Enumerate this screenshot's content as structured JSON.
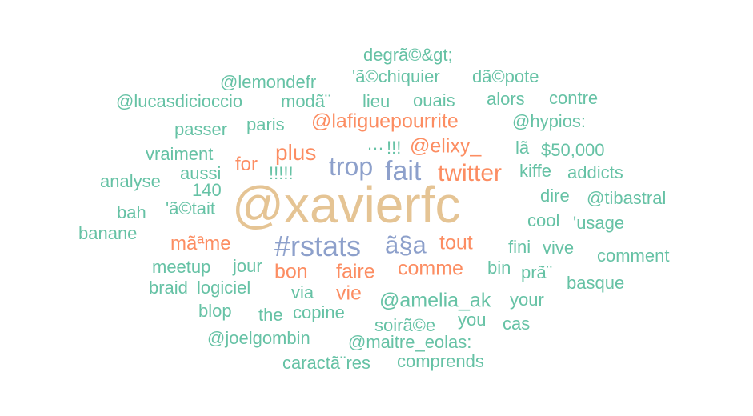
{
  "palette": {
    "green": "#66c2a5",
    "orange": "#fc8d62",
    "blue": "#8da0cb",
    "tan": "#e5c494"
  },
  "words": [
    {
      "text": "@xavierfc",
      "color": "tan"
    },
    {
      "text": "#rstats",
      "color": "blue"
    },
    {
      "text": "fait",
      "color": "blue"
    },
    {
      "text": "trop",
      "color": "blue"
    },
    {
      "text": "ã§a",
      "color": "blue"
    },
    {
      "text": "twitter",
      "color": "orange"
    },
    {
      "text": "plus",
      "color": "orange"
    },
    {
      "text": "@lafiguepourrite",
      "color": "orange"
    },
    {
      "text": "@elixy_",
      "color": "orange"
    },
    {
      "text": "tout",
      "color": "orange"
    },
    {
      "text": "comme",
      "color": "orange"
    },
    {
      "text": "faire",
      "color": "orange"
    },
    {
      "text": "bon",
      "color": "orange"
    },
    {
      "text": "vie",
      "color": "orange"
    },
    {
      "text": "mãªme",
      "color": "orange"
    },
    {
      "text": "for",
      "color": "orange"
    },
    {
      "text": "@amelia_ak",
      "color": "green"
    },
    {
      "text": "!!!",
      "color": "green"
    },
    {
      "text": "!!!!!",
      "color": "green"
    },
    {
      "text": "…",
      "color": "green"
    },
    {
      "text": "degrã©&gt;",
      "color": "green"
    },
    {
      "text": "'ã©chiquier",
      "color": "green"
    },
    {
      "text": "dã©pote",
      "color": "green"
    },
    {
      "text": "@lemondefr",
      "color": "green"
    },
    {
      "text": "@lucasdicioccio",
      "color": "green"
    },
    {
      "text": "modã¨",
      "color": "green"
    },
    {
      "text": "lieu",
      "color": "green"
    },
    {
      "text": "ouais",
      "color": "green"
    },
    {
      "text": "alors",
      "color": "green"
    },
    {
      "text": "contre",
      "color": "green"
    },
    {
      "text": "passer",
      "color": "green"
    },
    {
      "text": "paris",
      "color": "green"
    },
    {
      "text": "@hypios:",
      "color": "green"
    },
    {
      "text": "vraiment",
      "color": "green"
    },
    {
      "text": "lã",
      "color": "green"
    },
    {
      "text": "$50,000",
      "color": "green"
    },
    {
      "text": "aussi",
      "color": "green"
    },
    {
      "text": "kiffe",
      "color": "green"
    },
    {
      "text": "addicts",
      "color": "green"
    },
    {
      "text": "analyse",
      "color": "green"
    },
    {
      "text": "140",
      "color": "green"
    },
    {
      "text": "dire",
      "color": "green"
    },
    {
      "text": "@tibastral",
      "color": "green"
    },
    {
      "text": "bah",
      "color": "green"
    },
    {
      "text": "'ã©tait",
      "color": "green"
    },
    {
      "text": "cool",
      "color": "green"
    },
    {
      "text": "'usage",
      "color": "green"
    },
    {
      "text": "banane",
      "color": "green"
    },
    {
      "text": "fini",
      "color": "green"
    },
    {
      "text": "vive",
      "color": "green"
    },
    {
      "text": "comment",
      "color": "green"
    },
    {
      "text": "meetup",
      "color": "green"
    },
    {
      "text": "jour",
      "color": "green"
    },
    {
      "text": "bin",
      "color": "green"
    },
    {
      "text": "prã¨",
      "color": "green"
    },
    {
      "text": "braid",
      "color": "green"
    },
    {
      "text": "logiciel",
      "color": "green"
    },
    {
      "text": "via",
      "color": "green"
    },
    {
      "text": "basque",
      "color": "green"
    },
    {
      "text": "your",
      "color": "green"
    },
    {
      "text": "blop",
      "color": "green"
    },
    {
      "text": "the",
      "color": "green"
    },
    {
      "text": "copine",
      "color": "green"
    },
    {
      "text": "you",
      "color": "green"
    },
    {
      "text": "soirã©e",
      "color": "green"
    },
    {
      "text": "cas",
      "color": "green"
    },
    {
      "text": "@joelgombin",
      "color": "green"
    },
    {
      "text": "@maitre_eolas:",
      "color": "green"
    },
    {
      "text": "caractã¨res",
      "color": "green"
    },
    {
      "text": "comprends",
      "color": "green"
    }
  ]
}
